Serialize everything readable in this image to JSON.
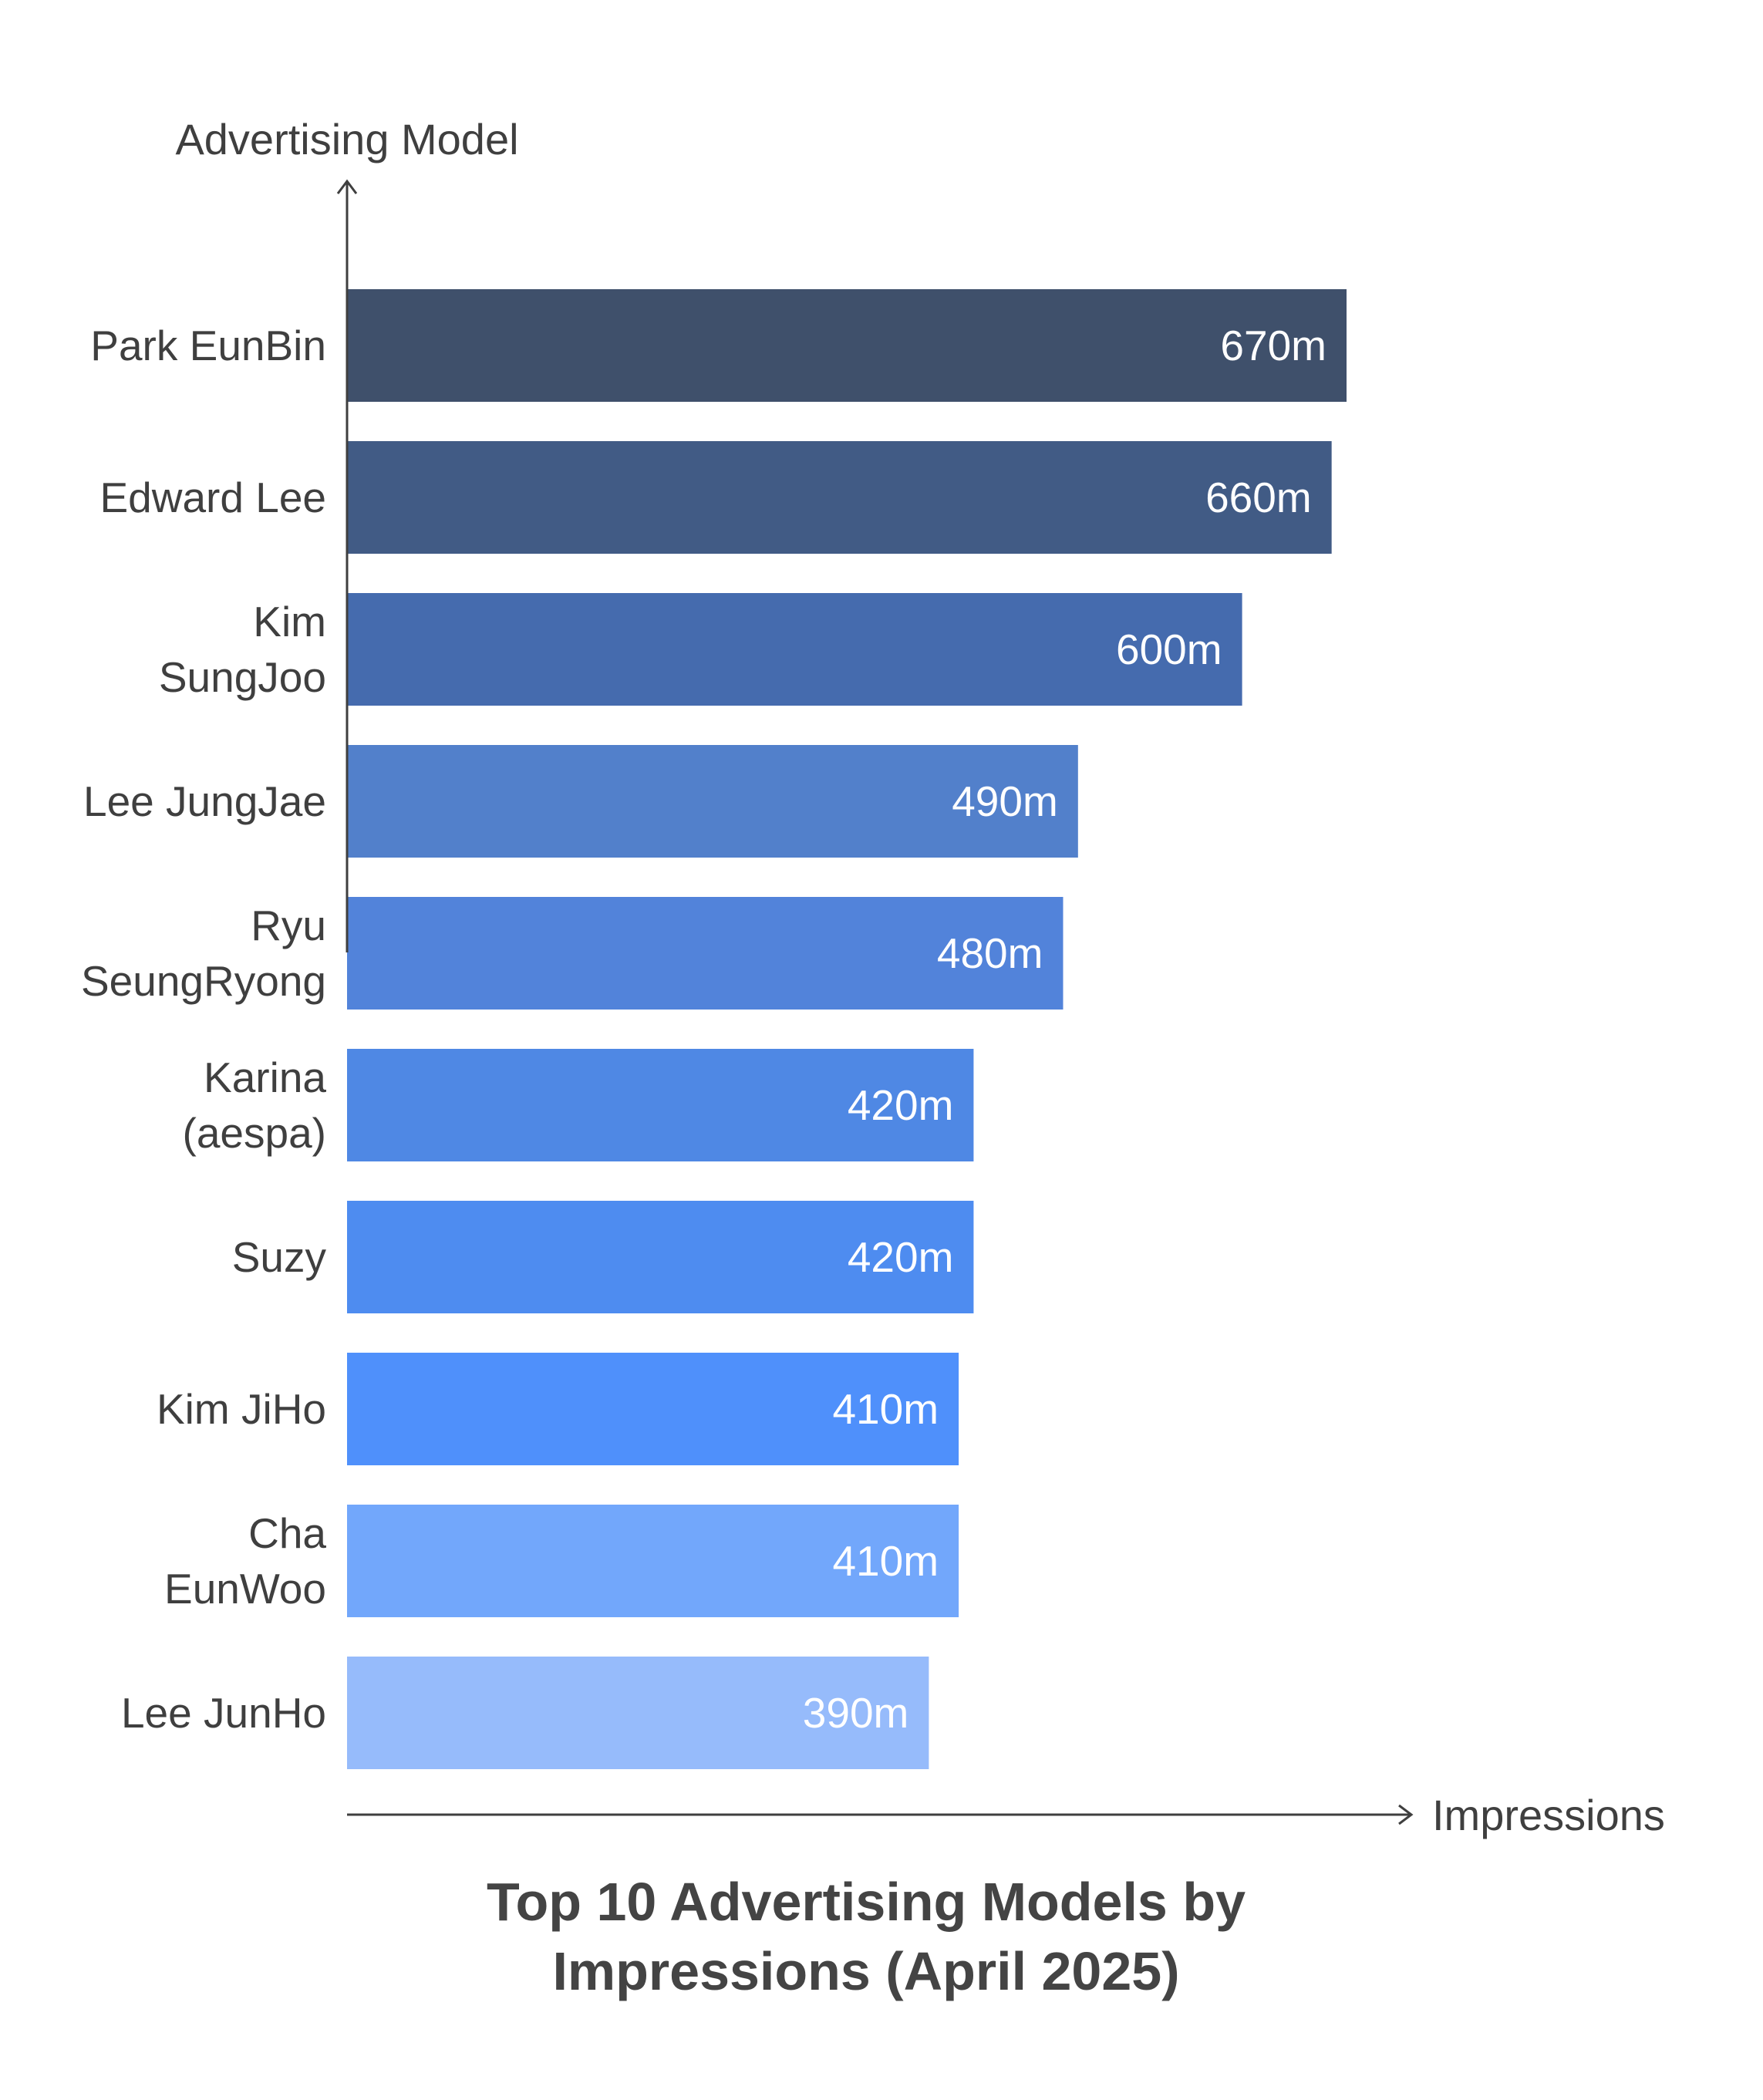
{
  "chart_data": {
    "type": "bar",
    "orientation": "horizontal",
    "title": "Top 10 Advertising Models by Impressions (April 2025)",
    "title_lines": [
      "Top 10 Advertising Models by",
      "Impressions (April 2025)"
    ],
    "ylabel": "Advertising Model",
    "xlabel": "Impressions",
    "grid": false,
    "legend": "none",
    "xlim": [
      0,
      670
    ],
    "categories": [
      "Park EunBin",
      "Edward Lee",
      "Kim SungJoo",
      "Lee JungJae",
      "Ryu SeungRyong",
      "Karina (aespa)",
      "Suzy",
      "Kim JiHo",
      "Cha EunWoo",
      "Lee JunHo"
    ],
    "category_lines": [
      [
        "Park EunBin"
      ],
      [
        "Edward Lee"
      ],
      [
        "Kim",
        "SungJoo"
      ],
      [
        "Lee JungJae"
      ],
      [
        "Ryu",
        "SeungRyong"
      ],
      [
        "Karina",
        "(aespa)"
      ],
      [
        "Suzy"
      ],
      [
        "Kim JiHo"
      ],
      [
        "Cha",
        "EunWoo"
      ],
      [
        "Lee JunHo"
      ]
    ],
    "values": [
      670,
      660,
      600,
      490,
      480,
      420,
      420,
      410,
      410,
      390
    ],
    "value_labels": [
      "670m",
      "660m",
      "600m",
      "490m",
      "480m",
      "420m",
      "420m",
      "410m",
      "410m",
      "390m"
    ],
    "colors": [
      "#3f506b",
      "#415b85",
      "#456bae",
      "#5280cb",
      "#5283da",
      "#4f88e4",
      "#4e8cf0",
      "#4f90fb",
      "#72a7fb",
      "#96bbfb"
    ],
    "axis_color": "#3f3f3f"
  }
}
